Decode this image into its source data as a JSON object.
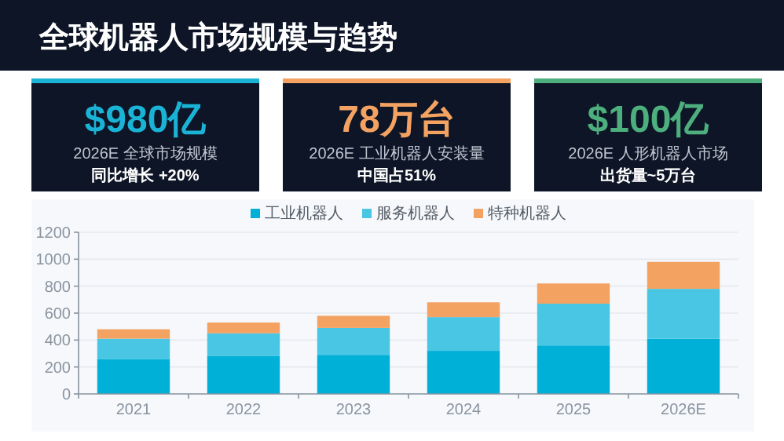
{
  "chart_data": [
    {
      "type": "other",
      "title": "全球机器人市场规模与趋势"
    },
    {
      "type": "other",
      "title": "$980亿",
      "subtitle": "2026E 全球市场规模",
      "annotations": [
        "同比增长 +20%"
      ],
      "color": "#1ab3d6"
    },
    {
      "type": "other",
      "title": "78万台",
      "subtitle": "2026E 工业机器人安装量",
      "annotations": [
        "中国占51%"
      ],
      "color": "#f4a262"
    },
    {
      "type": "other",
      "title": "$100亿",
      "subtitle": "2026E 人形机器人市场",
      "annotations": [
        "出货量~5万台"
      ],
      "color": "#4caf7d"
    },
    {
      "type": "bar",
      "stacked": true,
      "categories": [
        "2021",
        "2022",
        "2023",
        "2024",
        "2025",
        "2026E"
      ],
      "series": [
        {
          "name": "工业机器人",
          "color": "#00b0d6",
          "values": [
            260,
            280,
            290,
            320,
            360,
            410
          ]
        },
        {
          "name": "服务机器人",
          "color": "#48c6e4",
          "values": [
            150,
            170,
            200,
            250,
            310,
            370
          ]
        },
        {
          "name": "特种机器人",
          "color": "#f4a262",
          "values": [
            70,
            80,
            90,
            110,
            150,
            200
          ]
        }
      ],
      "ylim": [
        0,
        1200
      ],
      "yticks": [
        0,
        200,
        400,
        600,
        800,
        1000,
        1200
      ],
      "grid": "y",
      "legend": "top"
    }
  ]
}
